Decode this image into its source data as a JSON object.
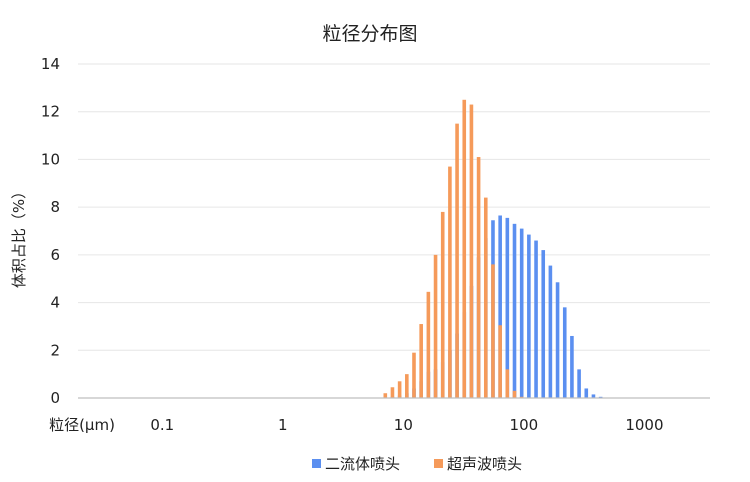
{
  "chart_data": {
    "type": "bar",
    "title": "粒径分布图",
    "xlabel": "粒径(μm)",
    "ylabel": "体积占比（%）",
    "x_scale": "log",
    "xlim": [
      0.02,
      3500
    ],
    "ylim": [
      0,
      14
    ],
    "y_ticks": [
      0,
      2,
      4,
      6,
      8,
      10,
      12,
      14
    ],
    "x_ticks": [
      {
        "value": 0.1,
        "label": "0.1"
      },
      {
        "value": 1,
        "label": "1"
      },
      {
        "value": 10,
        "label": "10"
      },
      {
        "value": 100,
        "label": "100"
      },
      {
        "value": 1000,
        "label": "1000"
      }
    ],
    "grid": true,
    "legend_position": "bottom",
    "colors": {
      "二流体喷头": "#5b8ff0",
      "超声波喷头": "#f59a5a"
    },
    "series": [
      {
        "name": "二流体喷头",
        "points": [
          [
            7.59,
            0.05
          ],
          [
            8.7,
            0.1
          ],
          [
            9.98,
            0.2
          ],
          [
            11.45,
            0.4
          ],
          [
            13.13,
            0.7
          ],
          [
            15.06,
            1.1
          ],
          [
            17.28,
            1.2
          ],
          [
            19.82,
            1.5
          ],
          [
            22.73,
            2.0
          ],
          [
            26.07,
            2.7
          ],
          [
            29.9,
            3.6
          ],
          [
            34.29,
            4.7
          ],
          [
            39.33,
            5.9
          ],
          [
            45.11,
            6.7
          ],
          [
            51.74,
            7.45
          ],
          [
            59.34,
            7.65
          ],
          [
            68.06,
            7.55
          ],
          [
            78.06,
            7.3
          ],
          [
            89.53,
            7.1
          ],
          [
            102.7,
            6.85
          ],
          [
            117.8,
            6.6
          ],
          [
            135.1,
            6.2
          ],
          [
            154.9,
            5.55
          ],
          [
            177.7,
            4.85
          ],
          [
            203.8,
            3.8
          ],
          [
            233.7,
            2.6
          ],
          [
            268.1,
            1.2
          ],
          [
            307.5,
            0.4
          ],
          [
            352.6,
            0.15
          ],
          [
            404.5,
            0.05
          ]
        ]
      },
      {
        "name": "超声波喷头",
        "points": [
          [
            7.59,
            0.2
          ],
          [
            8.7,
            0.45
          ],
          [
            9.98,
            0.7
          ],
          [
            11.45,
            1.0
          ],
          [
            13.13,
            1.9
          ],
          [
            15.06,
            3.1
          ],
          [
            17.28,
            4.45
          ],
          [
            19.82,
            6.0
          ],
          [
            22.73,
            7.8
          ],
          [
            26.07,
            9.7
          ],
          [
            29.9,
            11.5
          ],
          [
            34.29,
            12.5
          ],
          [
            39.33,
            12.3
          ],
          [
            45.11,
            10.1
          ],
          [
            51.74,
            8.4
          ],
          [
            59.34,
            5.6
          ],
          [
            68.06,
            3.05
          ],
          [
            78.06,
            1.2
          ],
          [
            89.53,
            0.3
          ],
          [
            102.7,
            0.05
          ]
        ]
      }
    ]
  }
}
